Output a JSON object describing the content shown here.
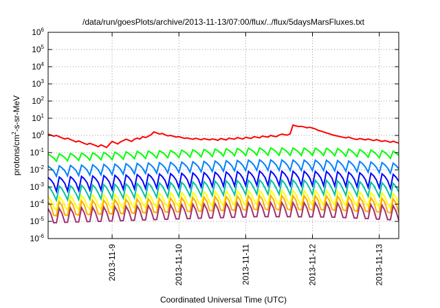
{
  "chart_data": {
    "type": "line",
    "title": "/data/run/goesPlots/archive/2013-11-13/07:00/flux/../flux/5daysMarsFluxes.txt",
    "xlabel": "Coordinated Universal Time (UTC)",
    "ylabel": {
      "prefix": "protons/cm",
      "sup": "2",
      "suffix": "-s-sr-MeV"
    },
    "yscale": "log",
    "ylim_exp": [
      -6,
      6
    ],
    "xlim": [
      "2013-11-08T01:00",
      "2013-11-13T07:00"
    ],
    "x_ticks": [
      {
        "label": "2013-11-9",
        "value": "2013-11-09T00:00"
      },
      {
        "label": "2013-11-10",
        "value": "2013-11-10T00:00"
      },
      {
        "label": "2013-11-11",
        "value": "2013-11-11T00:00"
      },
      {
        "label": "2013-11-12",
        "value": "2013-11-12T00:00"
      },
      {
        "label": "2013-11-13",
        "value": "2013-11-13T00:00"
      }
    ],
    "y_ticks": [
      {
        "base": "10",
        "exp": "-6",
        "value": 1e-06
      },
      {
        "base": "10",
        "exp": "-5",
        "value": 1e-05
      },
      {
        "base": "10",
        "exp": "-4",
        "value": 0.0001
      },
      {
        "base": "10",
        "exp": "-3",
        "value": 0.001
      },
      {
        "base": "10",
        "exp": "-2",
        "value": 0.01
      },
      {
        "base": "10",
        "exp": "-1",
        "value": 0.1
      },
      {
        "base": "10",
        "exp": "0",
        "value": 1
      },
      {
        "base": "10",
        "exp": "1",
        "value": 10
      },
      {
        "base": "10",
        "exp": "2",
        "value": 100
      },
      {
        "base": "10",
        "exp": "3",
        "value": 1000
      },
      {
        "base": "10",
        "exp": "4",
        "value": 10000
      },
      {
        "base": "10",
        "exp": "5",
        "value": 100000
      },
      {
        "base": "10",
        "exp": "6",
        "value": 1000000
      }
    ],
    "grid": true,
    "grid_style": "dotted",
    "legend": "none",
    "series": [
      {
        "color": "#ff0000",
        "values_x_t": [
          "2013-11-08T01:00",
          "2013-11-08T02:00",
          "2013-11-08T03:00",
          "2013-11-08T04:00",
          "2013-11-08T05:00",
          "2013-11-08T06:00",
          "2013-11-08T07:00",
          "2013-11-08T08:00",
          "2013-11-08T09:00",
          "2013-11-08T10:00",
          "2013-11-08T11:00",
          "2013-11-08T12:00",
          "2013-11-08T13:00",
          "2013-11-08T14:00",
          "2013-11-08T15:00",
          "2013-11-08T16:00",
          "2013-11-08T17:00",
          "2013-11-08T18:00",
          "2013-11-08T19:00",
          "2013-11-08T20:00",
          "2013-11-08T21:00",
          "2013-11-08T22:00",
          "2013-11-08T23:00",
          "2013-11-09T00:00",
          "2013-11-09T01:00",
          "2013-11-09T02:00",
          "2013-11-09T03:00",
          "2013-11-09T04:00",
          "2013-11-09T05:00",
          "2013-11-09T06:00",
          "2013-11-09T07:00",
          "2013-11-09T08:00",
          "2013-11-09T09:00",
          "2013-11-09T10:00",
          "2013-11-09T11:00",
          "2013-11-09T12:00",
          "2013-11-09T13:00",
          "2013-11-09T14:00",
          "2013-11-09T15:00",
          "2013-11-09T16:00",
          "2013-11-09T17:00",
          "2013-11-09T18:00",
          "2013-11-09T19:00",
          "2013-11-09T20:00",
          "2013-11-09T21:00",
          "2013-11-09T22:00",
          "2013-11-09T23:00",
          "2013-11-10T00:00",
          "2013-11-10T01:00",
          "2013-11-10T02:00",
          "2013-11-10T03:00",
          "2013-11-10T04:00",
          "2013-11-10T05:00",
          "2013-11-10T06:00",
          "2013-11-10T07:00",
          "2013-11-10T08:00",
          "2013-11-10T09:00",
          "2013-11-10T10:00",
          "2013-11-10T11:00",
          "2013-11-10T12:00",
          "2013-11-10T13:00",
          "2013-11-10T14:00",
          "2013-11-10T15:00",
          "2013-11-10T16:00",
          "2013-11-10T17:00",
          "2013-11-10T18:00",
          "2013-11-10T19:00",
          "2013-11-10T20:00",
          "2013-11-10T21:00",
          "2013-11-10T22:00",
          "2013-11-10T23:00",
          "2013-11-11T00:00",
          "2013-11-11T01:00",
          "2013-11-11T02:00",
          "2013-11-11T03:00",
          "2013-11-11T04:00",
          "2013-11-11T05:00",
          "2013-11-11T06:00",
          "2013-11-11T07:00",
          "2013-11-11T08:00",
          "2013-11-11T09:00",
          "2013-11-11T10:00",
          "2013-11-11T11:00",
          "2013-11-11T12:00",
          "2013-11-11T13:00",
          "2013-11-11T14:00",
          "2013-11-11T15:00",
          "2013-11-11T16:00",
          "2013-11-11T17:00",
          "2013-11-11T18:00",
          "2013-11-11T19:00",
          "2013-11-11T20:00",
          "2013-11-11T21:00",
          "2013-11-11T22:00",
          "2013-11-11T23:00",
          "2013-11-12T00:00",
          "2013-11-12T01:00",
          "2013-11-12T02:00",
          "2013-11-12T03:00",
          "2013-11-12T04:00",
          "2013-11-12T05:00",
          "2013-11-12T06:00",
          "2013-11-12T07:00",
          "2013-11-12T08:00",
          "2013-11-12T09:00",
          "2013-11-12T10:00",
          "2013-11-12T11:00",
          "2013-11-12T12:00",
          "2013-11-12T13:00",
          "2013-11-12T14:00",
          "2013-11-12T15:00",
          "2013-11-12T16:00",
          "2013-11-12T17:00",
          "2013-11-12T18:00",
          "2013-11-12T19:00",
          "2013-11-12T20:00",
          "2013-11-12T21:00",
          "2013-11-12T22:00",
          "2013-11-12T23:00",
          "2013-11-13T00:00",
          "2013-11-13T01:00",
          "2013-11-13T02:00",
          "2013-11-13T03:00",
          "2013-11-13T04:00",
          "2013-11-13T05:00",
          "2013-11-13T06:00",
          "2013-11-13T07:00"
        ],
        "values": [
          1.2,
          1.05,
          0.9,
          1.0,
          0.85,
          0.72,
          0.62,
          0.7,
          0.58,
          0.5,
          0.42,
          0.48,
          0.4,
          0.34,
          0.3,
          0.35,
          0.3,
          0.26,
          0.22,
          0.28,
          0.24,
          0.2,
          0.3,
          0.45,
          0.38,
          0.32,
          0.42,
          0.5,
          0.6,
          0.52,
          0.45,
          0.6,
          0.7,
          0.62,
          0.85,
          0.75,
          0.9,
          1.1,
          1.6,
          1.4,
          1.2,
          1.3,
          1.1,
          0.95,
          1.0,
          0.9,
          0.8,
          0.85,
          0.75,
          0.68,
          0.72,
          0.65,
          0.6,
          0.68,
          0.62,
          0.56,
          0.65,
          0.6,
          0.55,
          0.62,
          0.58,
          0.52,
          0.66,
          0.6,
          0.55,
          0.7,
          0.64,
          0.6,
          0.75,
          0.68,
          0.62,
          0.78,
          0.72,
          0.68,
          0.85,
          0.78,
          0.72,
          0.92,
          0.85,
          0.8,
          1.0,
          0.9,
          0.85,
          1.05,
          1.2,
          1.1,
          1.05,
          1.25,
          4.0,
          3.6,
          3.3,
          3.4,
          3.1,
          2.8,
          3.0,
          2.7,
          2.4,
          2.0,
          1.8,
          1.6,
          1.4,
          1.25,
          1.1,
          1.0,
          0.92,
          0.85,
          0.78,
          0.72,
          0.8,
          0.7,
          0.62,
          0.58,
          0.66,
          0.6,
          0.55,
          0.62,
          0.56,
          0.5,
          0.58,
          0.5,
          0.45,
          0.5,
          0.45,
          0.4,
          0.46,
          0.4,
          0.36,
          0.34
        ]
      },
      {
        "color": "#00ff00",
        "base": 0.09,
        "trend": [
          0.9,
          1.2,
          1.6,
          2.1,
          2.0,
          1.3
        ],
        "sawtooth": 0.25
      },
      {
        "color": "#0080ff",
        "base": 0.018,
        "trend": [
          0.9,
          1.2,
          1.6,
          2.1,
          2.0,
          1.3
        ],
        "sawtooth": 0.3
      },
      {
        "color": "#0000ff",
        "base": 0.004,
        "trend": [
          0.9,
          1.2,
          1.6,
          2.1,
          2.0,
          1.3
        ],
        "sawtooth": 0.35
      },
      {
        "color": "#00c0a0",
        "base": 0.0012,
        "trend": [
          0.9,
          1.2,
          1.6,
          2.1,
          2.0,
          1.3
        ],
        "sawtooth": 0.4
      },
      {
        "color": "#ffff00",
        "base": 0.0003,
        "trend": [
          0.9,
          1.2,
          1.6,
          2.1,
          2.0,
          1.3
        ],
        "sawtooth": 0.45
      },
      {
        "color": "#ffaa00",
        "base": 0.00015,
        "trend": [
          0.9,
          1.2,
          1.6,
          2.1,
          2.0,
          1.3
        ],
        "sawtooth": 0.5
      },
      {
        "color": "#a03070",
        "base": 6e-05,
        "trend": [
          0.9,
          1.2,
          1.6,
          2.1,
          2.0,
          1.3
        ],
        "sawtooth": 0.6
      }
    ]
  }
}
